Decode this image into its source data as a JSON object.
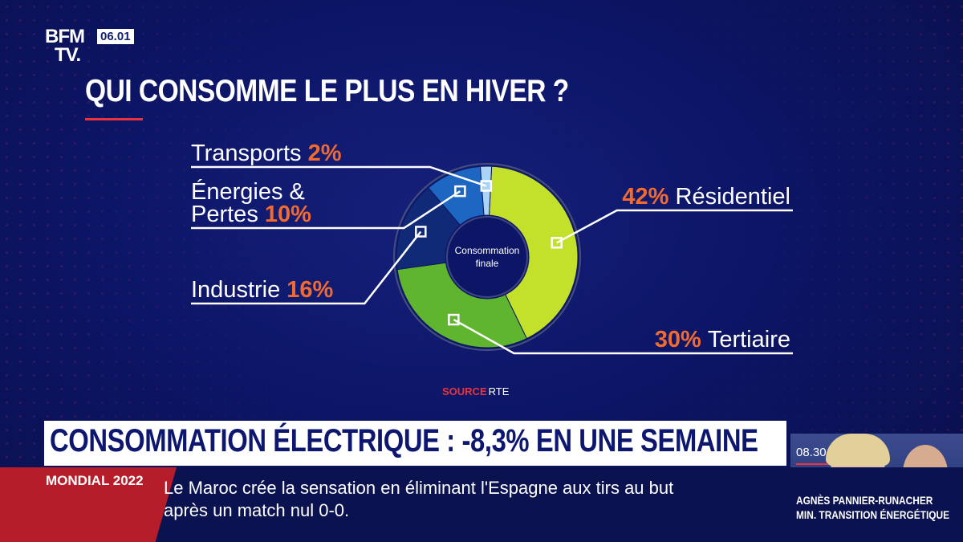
{
  "brand": {
    "logo_line1": "BFM",
    "logo_line2": "TV.",
    "clock": "06.01"
  },
  "title": "QUI CONSOMME LE PLUS EN HIVER ?",
  "chart_data": {
    "type": "pie",
    "title": "QUI CONSOMME LE PLUS EN HIVER ?",
    "center_label": [
      "Consommation",
      "finale"
    ],
    "slices": [
      {
        "label": "Résidentiel",
        "value": 42,
        "value_label": "42%",
        "color": "#c3e02a"
      },
      {
        "label": "Tertiaire",
        "value": 30,
        "value_label": "30%",
        "color": "#5fb52e"
      },
      {
        "label": "Industrie",
        "value": 16,
        "value_label": "16%",
        "color": "#112a78"
      },
      {
        "label": "Énergies & Pertes",
        "label_lines": [
          "Énergies &",
          "Pertes"
        ],
        "value": 10,
        "value_label": "10%",
        "color": "#1d66c2"
      },
      {
        "label": "Transports",
        "value": 2,
        "value_label": "2%",
        "color": "#a9d4f5"
      }
    ],
    "colors": {
      "label": "#ffffff",
      "value": "#f26a2e"
    }
  },
  "source": {
    "prefix": "SOURCE",
    "name": "RTE"
  },
  "ticker": {
    "headline": "CONSOMMATION ÉLECTRIQUE : -8,3% EN UNE SEMAINE",
    "time": "08.30",
    "tag": "MONDIAL 2022",
    "news_line1": "Le Maroc crée la sensation en éliminant l'Espagne aux tirs au but",
    "news_line2": "après un match nul 0-0."
  },
  "guest": {
    "name": "AGNÈS PANNIER-RUNACHER",
    "role": "MIN. TRANSITION ÉNERGÉTIQUE"
  }
}
